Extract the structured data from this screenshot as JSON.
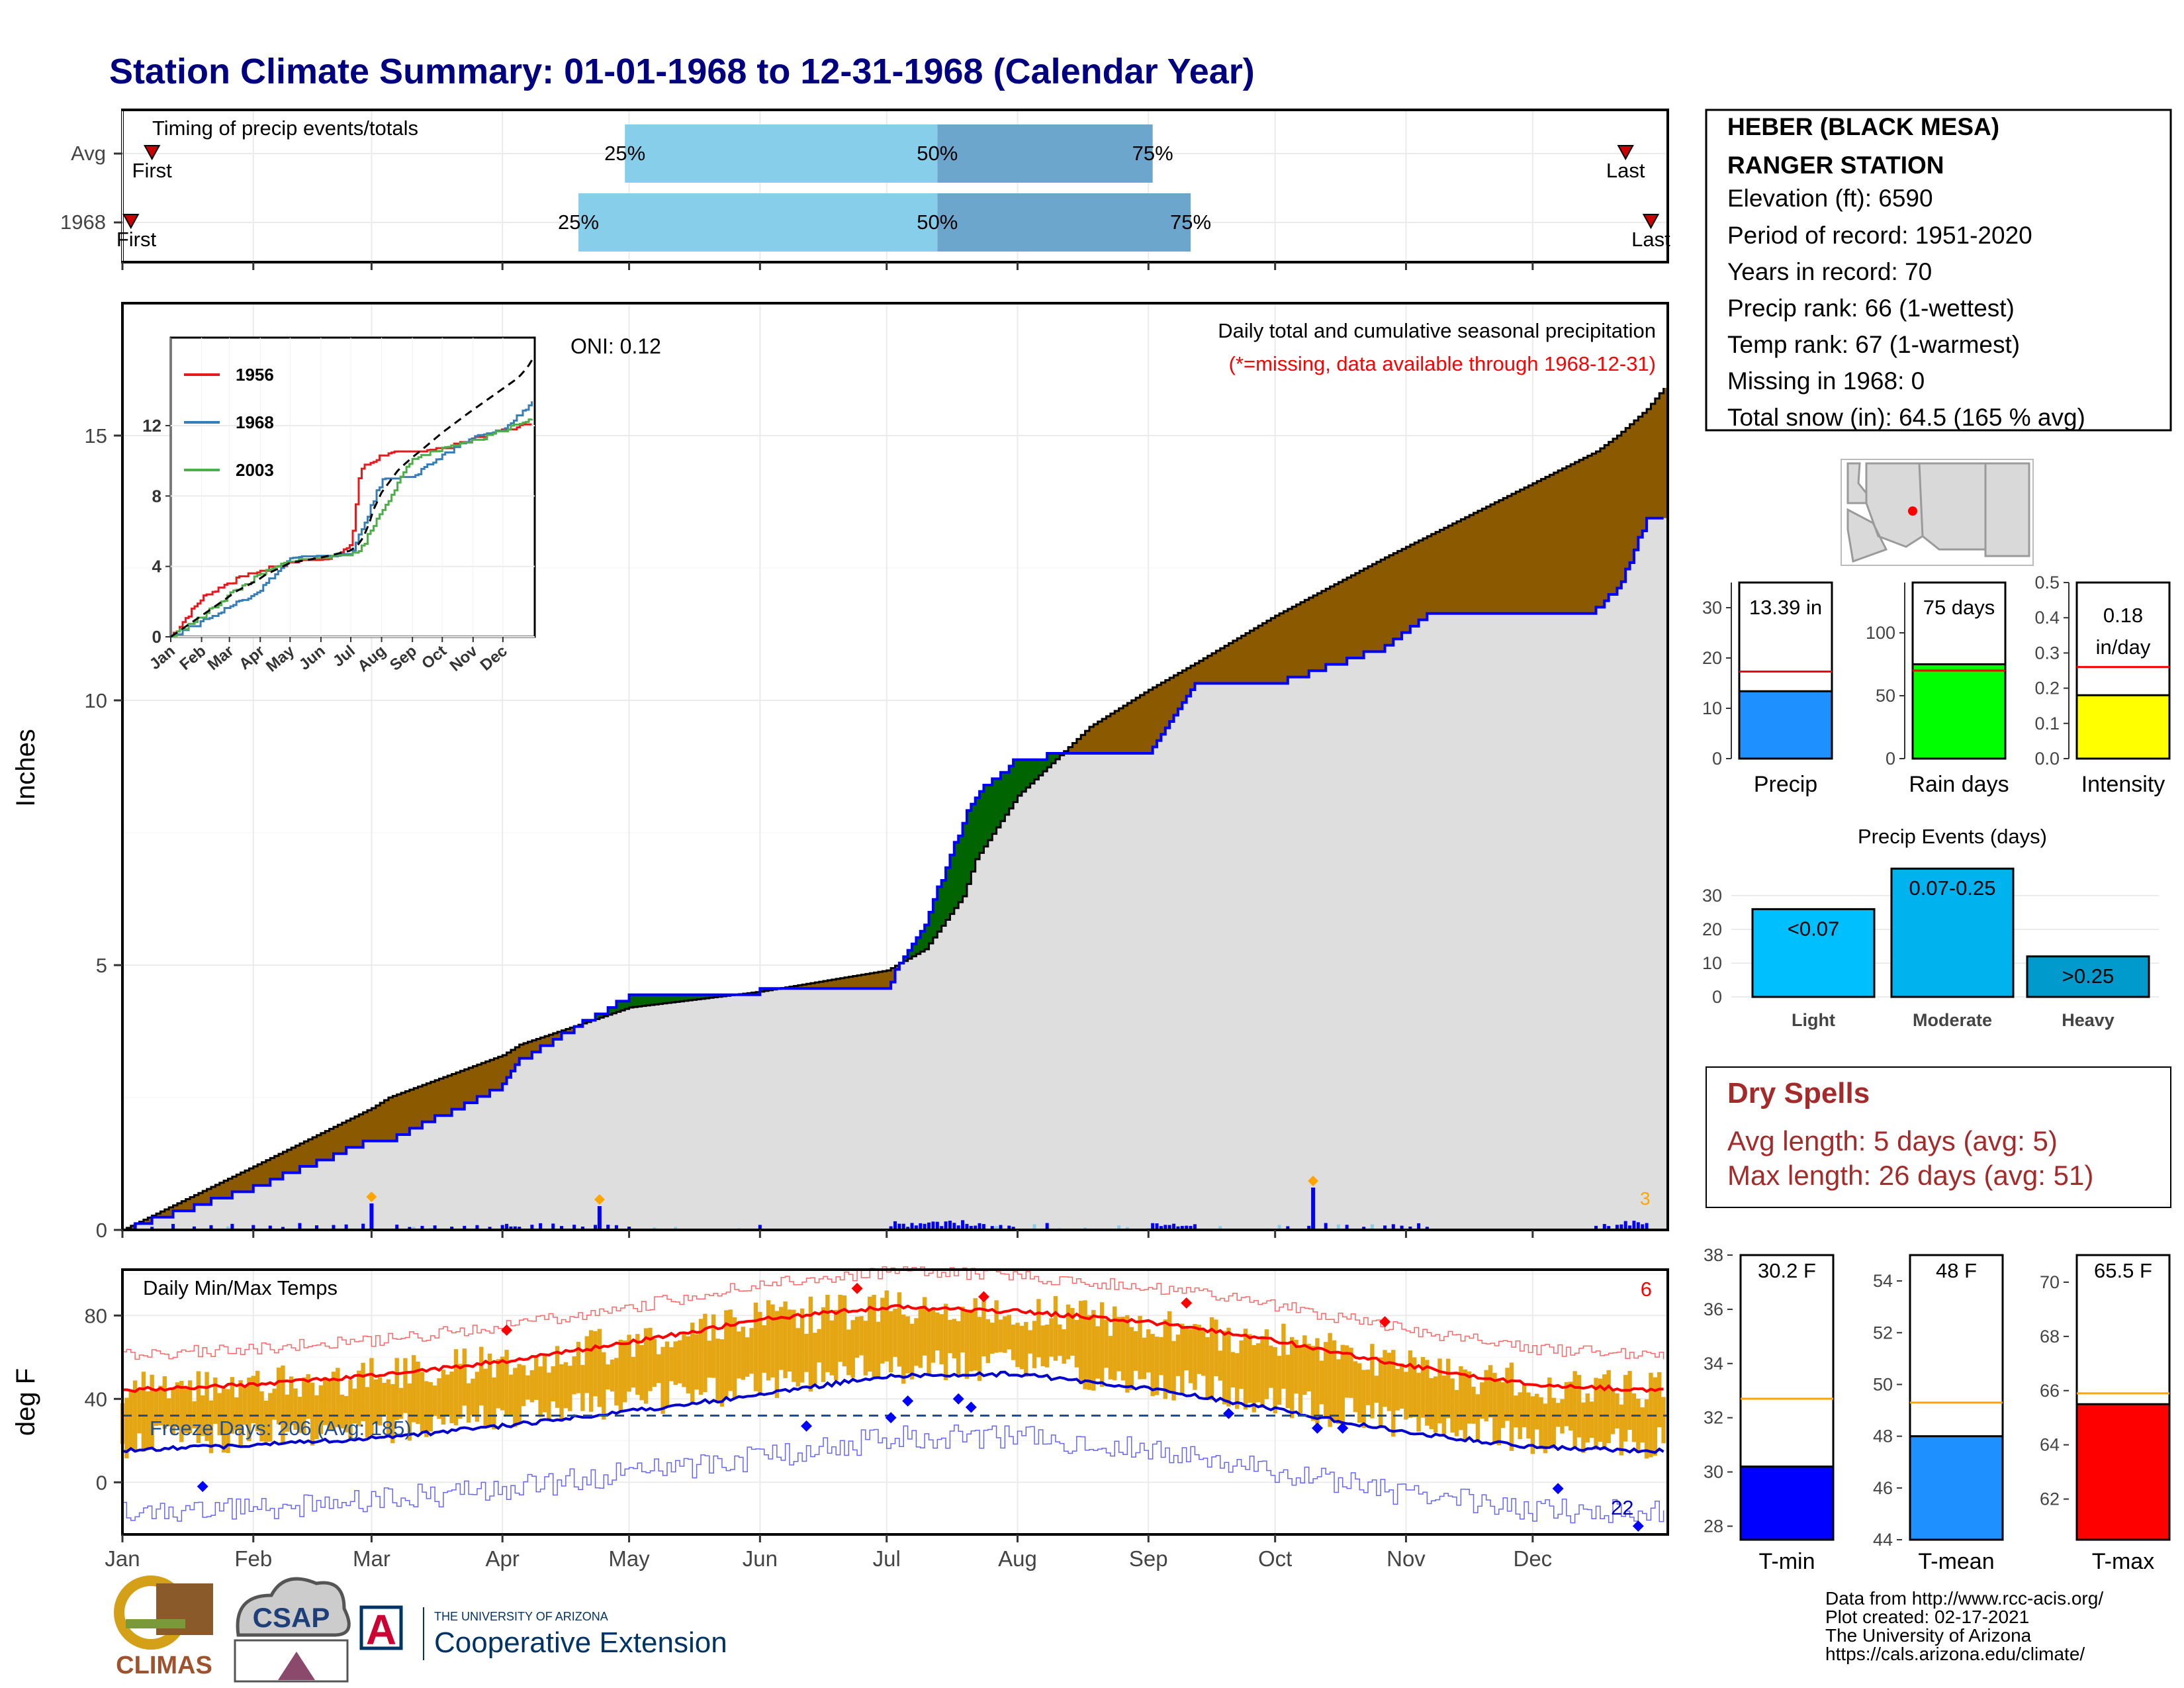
{
  "title": "Station Climate Summary: 01-01-1968 to 12-31-1968 (Calendar Year)",
  "timing": {
    "panel_title": "Timing of precip events/totals",
    "rows": [
      {
        "label": "Avg",
        "first_label": "First",
        "last_label": "Last",
        "first_day": 8,
        "last_day": 357,
        "p25_day": 120,
        "p50_day": 194,
        "p75_day": 245,
        "p25_label": "25%",
        "p50_label": "50%",
        "p75_label": "75%"
      },
      {
        "label": "1968",
        "first_label": "First",
        "last_label": "Last",
        "first_day": 3,
        "last_day": 363,
        "p25_day": 109,
        "p50_day": 194,
        "p75_day": 254,
        "p25_label": "25%",
        "p50_label": "50%",
        "p75_label": "75%"
      }
    ],
    "colors": {
      "early": "#87ceeb",
      "late": "#6ca6cd",
      "marker": "#cc0000"
    }
  },
  "months": [
    "Jan",
    "Feb",
    "Mar",
    "Apr",
    "May",
    "Jun",
    "Jul",
    "Aug",
    "Sep",
    "Oct",
    "Nov",
    "Dec"
  ],
  "inset_months": [
    "Jan",
    "Feb",
    "Mar",
    "Apr",
    "May",
    "Jun",
    "Jul",
    "Aug",
    "Sep",
    "Oct",
    "Nov",
    "Dec"
  ],
  "precip": {
    "ylabel": "Inches",
    "annotation_line1": "Daily total and cumulative seasonal precipitation",
    "annotation_line2": "(*=missing, data available through 1968-12-31)",
    "oni": "ONI: 0.12",
    "end_note": "3",
    "colors": {
      "above": "#006400",
      "below": "#8b5a00",
      "fill": "#dedede",
      "line": "#0000ff",
      "daily": "#0000ff",
      "missing": "#87ceeb",
      "extreme": "#ffa500"
    }
  },
  "inset": {
    "legend": [
      {
        "name": "1956",
        "color": "#e41a1c"
      },
      {
        "name": "1968",
        "color": "#377eb8"
      },
      {
        "name": "2003",
        "color": "#4daf4a"
      }
    ]
  },
  "temps": {
    "panel_title": "Daily Min/Max Temps",
    "ylabel": "deg F",
    "freeze_label": "Freeze Days: 206 (Avg: 185)",
    "freeze_line": 32,
    "count_high": "6",
    "count_low": "22",
    "colors": {
      "bar": "#e5a614",
      "max_avg": "#ff0000",
      "min_avg": "#0000cd",
      "record_max": "#ff6666",
      "record_min": "#6666ff",
      "freeze": "#1f4e99"
    }
  },
  "station": {
    "name_line1": "HEBER (BLACK MESA)",
    "name_line2": "RANGER STATION",
    "elevation": "Elevation (ft): 6590",
    "period": "Period of record: 1951-2020",
    "years": "Years in record: 70",
    "precip_rank": "Precip rank: 66 (1-wettest)",
    "temp_rank": "Temp rank: 67 (1-warmest)",
    "missing": "Missing in 1968: 0",
    "snow": "Total snow (in): 64.5 (165 % avg)"
  },
  "stat_bars": [
    {
      "label": "Precip",
      "value_label": "13.39 in",
      "value": 13.39,
      "avg": 17.3,
      "ymax": 35,
      "ticks": [
        0,
        10,
        20,
        30
      ],
      "color": "#1e90ff"
    },
    {
      "label": "Rain days",
      "value_label": "75 days",
      "value": 75,
      "avg": 70,
      "ymax": 140,
      "ticks": [
        0,
        50,
        100
      ],
      "color": "#00ff00"
    },
    {
      "label": "Intensity",
      "value_label": "0.18 in/day",
      "value_label_1": "0.18",
      "value_label_2": "in/day",
      "value": 0.18,
      "avg": 0.26,
      "ymax": 0.5,
      "ticks": [
        0.0,
        0.1,
        0.2,
        0.3,
        0.4,
        0.5
      ],
      "color": "#ffff00"
    }
  ],
  "events": {
    "title": "Precip Events (days)",
    "categories": [
      "Light",
      "Moderate",
      "Heavy"
    ],
    "labels": [
      "<0.07",
      "0.07-0.25",
      ">0.25"
    ],
    "values": [
      26,
      38,
      12
    ],
    "colors": [
      "#00bfff",
      "#00b2ee",
      "#009acd"
    ],
    "ticks": [
      0,
      10,
      20,
      30
    ]
  },
  "dry_spells": {
    "title": "Dry Spells",
    "avg": "Avg length: 5 days (avg: 5)",
    "max": "Max length: 26 days (avg: 51)"
  },
  "temp_bars": [
    {
      "label": "T-min",
      "value_label": "30.2 F",
      "value": 30.2,
      "avg": 32.7,
      "ymin": 27.5,
      "ymax": 38,
      "ticks": [
        28,
        30,
        32,
        34,
        36,
        38
      ],
      "color": "#0000ff"
    },
    {
      "label": "T-mean",
      "value_label": "48 F",
      "value": 48,
      "avg": 49.3,
      "ymin": 44,
      "ymax": 55,
      "ticks": [
        44,
        46,
        48,
        50,
        52,
        54
      ],
      "color": "#1e90ff"
    },
    {
      "label": "T-max",
      "value_label": "65.5 F",
      "value": 65.5,
      "avg": 65.9,
      "ymin": 60.5,
      "ymax": 71,
      "ticks": [
        62,
        64,
        66,
        68,
        70
      ],
      "color": "#ff0000"
    }
  ],
  "footer": {
    "line1": "Data from http://www.rcc-acis.org/",
    "line2": "Plot created: 02-17-2021",
    "line3": "The University of Arizona",
    "line4": "https://cals.arizona.edu/climate/"
  },
  "logos": {
    "climas": "CLIMAS",
    "csap": "CSAP",
    "ua_small": "THE UNIVERSITY OF ARIZONA",
    "ua_big": "Cooperative Extension",
    "ua_letter": "A"
  },
  "chart_data": [
    {
      "type": "bar",
      "title": "Timing of precip events/totals",
      "categories": [
        "Avg",
        "1968"
      ],
      "series": [
        {
          "name": "25%",
          "values": [
            120,
            109
          ]
        },
        {
          "name": "50%",
          "values": [
            194,
            194
          ]
        },
        {
          "name": "75%",
          "values": [
            245,
            254
          ]
        },
        {
          "name": "First",
          "values": [
            8,
            3
          ]
        },
        {
          "name": "Last",
          "values": [
            357,
            363
          ]
        }
      ]
    },
    {
      "type": "area",
      "title": "Daily total and cumulative seasonal precipitation",
      "ylabel": "Inches",
      "ylim": [
        0,
        17.5
      ],
      "x": [
        1,
        32,
        60,
        64,
        91,
        95,
        110,
        121,
        152,
        182,
        191,
        200,
        203,
        213,
        230,
        244,
        255,
        274,
        300,
        310,
        335,
        350,
        355,
        362,
        366
      ],
      "series": [
        {
          "name": "Avg cumulative",
          "values": [
            0,
            1.2,
            2.3,
            2.5,
            3.3,
            3.5,
            3.9,
            4.2,
            4.5,
            4.9,
            5.3,
            6.3,
            7.0,
            8.2,
            9.5,
            10.2,
            10.7,
            11.6,
            12.7,
            13.1,
            14.1,
            14.7,
            15.0,
            15.5,
            15.9
          ]
        },
        {
          "name": "1968 cumulative",
          "values": [
            0,
            0.8,
            1.7,
            1.7,
            2.7,
            3.2,
            3.9,
            4.4,
            4.5,
            4.6,
            5.8,
            7.7,
            8.2,
            8.9,
            9.0,
            9.0,
            10.3,
            10.3,
            11.0,
            11.6,
            11.6,
            11.7,
            12.1,
            13.4,
            13.4
          ]
        }
      ]
    },
    {
      "type": "line",
      "title": "Cumulative precipitation analog years",
      "ylim": [
        0,
        17
      ],
      "x": [
        1,
        32,
        60,
        91,
        121,
        152,
        182,
        191,
        213,
        244,
        274,
        305,
        335,
        365
      ],
      "series": [
        {
          "name": "1956",
          "values": [
            0,
            2.2,
            3.1,
            3.7,
            4.2,
            4.3,
            5.1,
            9.5,
            10.3,
            10.5,
            10.6,
            11.2,
            11.7,
            12.1
          ]
        },
        {
          "name": "1968",
          "values": [
            0,
            0.8,
            1.7,
            2.7,
            4.4,
            4.5,
            4.6,
            5.8,
            8.9,
            9.0,
            10.3,
            11.3,
            11.7,
            13.4
          ]
        },
        {
          "name": "2003",
          "values": [
            0,
            1.1,
            2.4,
            3.5,
            4.3,
            4.4,
            4.6,
            4.9,
            7.2,
            10.1,
            10.6,
            11.1,
            11.7,
            12.5
          ]
        }
      ]
    },
    {
      "type": "line",
      "title": "Daily Min/Max Temps",
      "ylabel": "deg F",
      "ylim": [
        -25,
        102
      ],
      "x": [
        1,
        32,
        60,
        91,
        121,
        152,
        182,
        213,
        244,
        274,
        305,
        335,
        365
      ],
      "series": [
        {
          "name": "Avg max",
          "values": [
            44,
            47,
            51,
            58,
            67,
            78,
            84,
            82,
            77,
            68,
            56,
            47,
            44
          ]
        },
        {
          "name": "Avg min",
          "values": [
            15,
            18,
            21,
            27,
            34,
            42,
            51,
            52,
            45,
            35,
            24,
            17,
            15
          ]
        }
      ]
    },
    {
      "type": "bar",
      "title": "Precip Events (days)",
      "categories": [
        "Light",
        "Moderate",
        "Heavy"
      ],
      "values": [
        26,
        38,
        12
      ]
    }
  ]
}
